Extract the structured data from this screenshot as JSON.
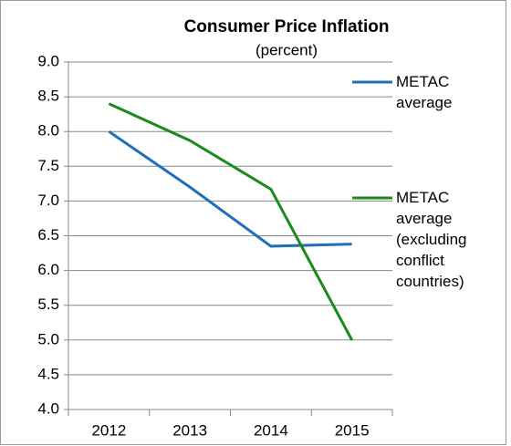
{
  "chart_data": {
    "type": "line",
    "title": "Consumer Price Inflation",
    "subtitle": "(percent)",
    "categories": [
      "2012",
      "2013",
      "2014",
      "2015"
    ],
    "series": [
      {
        "name": "METAC average",
        "color": "#1f6fba",
        "values": [
          8.0,
          7.2,
          6.35,
          6.38
        ]
      },
      {
        "name": "METAC average (excluding conflict countries)",
        "color": "#1a8a1a",
        "values": [
          8.4,
          7.87,
          7.17,
          5.0
        ]
      }
    ],
    "ylim": [
      4.0,
      9.0
    ],
    "yticks": [
      {
        "value": 4.0,
        "label": "4.0"
      },
      {
        "value": 4.5,
        "label": "4.5"
      },
      {
        "value": 5.0,
        "label": "5.0"
      },
      {
        "value": 5.5,
        "label": "5.5"
      },
      {
        "value": 6.0,
        "label": "6.0"
      },
      {
        "value": 6.5,
        "label": "6.5"
      },
      {
        "value": 7.0,
        "label": "7.0"
      },
      {
        "value": 7.5,
        "label": "7.5"
      },
      {
        "value": 8.0,
        "label": "8.0"
      },
      {
        "value": 8.5,
        "label": "8.5"
      },
      {
        "value": 9.0,
        "label": "9.0"
      }
    ],
    "grid": true
  }
}
